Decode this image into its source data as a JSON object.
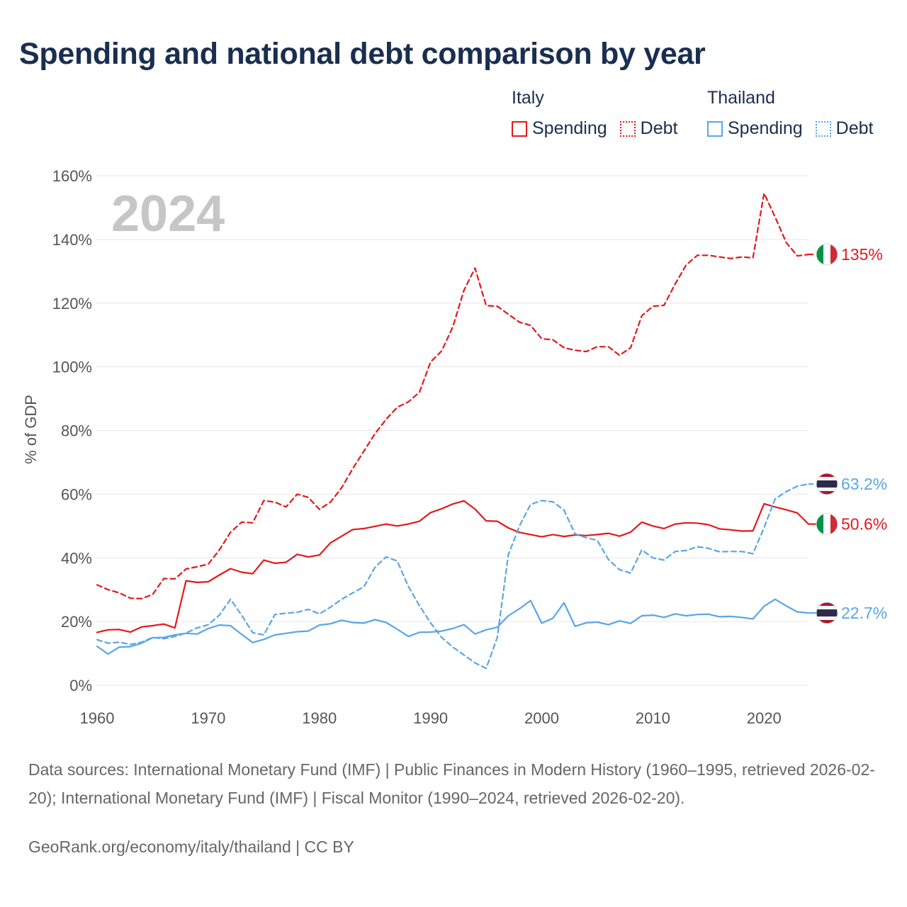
{
  "title": "Spending and national debt comparison by year",
  "legend": {
    "groups": [
      {
        "name": "Italy",
        "color": "#e3191c",
        "items": [
          {
            "label": "Spending",
            "style": "solid"
          },
          {
            "label": "Debt",
            "style": "dotted"
          }
        ]
      },
      {
        "name": "Thailand",
        "color": "#5aa6e6",
        "items": [
          {
            "label": "Spending",
            "style": "solid"
          },
          {
            "label": "Debt",
            "style": "dotted"
          }
        ]
      }
    ]
  },
  "chart_data": {
    "type": "line",
    "ylabel": "% of GDP",
    "xlabel": "",
    "ylim": [
      0,
      160
    ],
    "xlim": [
      1960,
      2025
    ],
    "x_ticks": [
      1960,
      1970,
      1980,
      1990,
      2000,
      2010,
      2020
    ],
    "y_ticks": [
      0,
      20,
      40,
      60,
      80,
      100,
      120,
      140,
      160
    ],
    "y_tick_labels": [
      "0%",
      "20%",
      "40%",
      "60%",
      "80%",
      "100%",
      "120%",
      "140%",
      "160%"
    ],
    "grid": true,
    "year_watermark": "2024",
    "series": [
      {
        "name": "Italy Debt",
        "country": "Italy",
        "metric": "Debt",
        "color": "#e3191c",
        "dashed": true,
        "end_label": "135%",
        "x": [
          1960,
          1961,
          1962,
          1963,
          1964,
          1965,
          1966,
          1967,
          1968,
          1969,
          1970,
          1971,
          1972,
          1973,
          1974,
          1975,
          1976,
          1977,
          1978,
          1979,
          1980,
          1981,
          1982,
          1983,
          1984,
          1985,
          1986,
          1987,
          1988,
          1989,
          1990,
          1991,
          1992,
          1993,
          1994,
          1995,
          1996,
          1997,
          1998,
          1999,
          2000,
          2001,
          2002,
          2003,
          2004,
          2005,
          2006,
          2007,
          2008,
          2009,
          2010,
          2011,
          2012,
          2013,
          2014,
          2015,
          2016,
          2017,
          2018,
          2019,
          2020,
          2021,
          2022,
          2023,
          2024
        ],
        "values": [
          31.5,
          30,
          29,
          27.3,
          27.2,
          28.5,
          33.5,
          33.4,
          36.5,
          37.2,
          38,
          42.5,
          48,
          51.2,
          51,
          58,
          57.5,
          56,
          60,
          59,
          55.2,
          57.5,
          62,
          68,
          73.5,
          79,
          83.5,
          87.3,
          89,
          92,
          101.5,
          105,
          112.5,
          124,
          131,
          119.2,
          119,
          116.5,
          114,
          113,
          108.8,
          108.5,
          106,
          105.2,
          104.8,
          106.3,
          106.3,
          103.6,
          106,
          116,
          119,
          119.3,
          126,
          132,
          135,
          135,
          134.5,
          134,
          134.5,
          134.2,
          154.5,
          147,
          139,
          134.8,
          135.3
        ]
      },
      {
        "name": "Italy Spending",
        "country": "Italy",
        "metric": "Spending",
        "color": "#e3191c",
        "dashed": false,
        "end_label": "50.6%",
        "x": [
          1960,
          1961,
          1962,
          1963,
          1964,
          1965,
          1966,
          1967,
          1968,
          1969,
          1970,
          1971,
          1972,
          1973,
          1974,
          1975,
          1976,
          1977,
          1978,
          1979,
          1980,
          1981,
          1982,
          1983,
          1984,
          1985,
          1986,
          1987,
          1988,
          1989,
          1990,
          1991,
          1992,
          1993,
          1994,
          1995,
          1996,
          1997,
          1998,
          1999,
          2000,
          2001,
          2002,
          2003,
          2004,
          2005,
          2006,
          2007,
          2008,
          2009,
          2010,
          2011,
          2012,
          2013,
          2014,
          2015,
          2016,
          2017,
          2018,
          2019,
          2020,
          2021,
          2022,
          2023,
          2024
        ],
        "values": [
          16.6,
          17.4,
          17.5,
          16.7,
          18.3,
          18.7,
          19.2,
          18,
          32.8,
          32.3,
          32.5,
          34.6,
          36.6,
          35.5,
          35,
          39.3,
          38.3,
          38.6,
          41.1,
          40.3,
          40.9,
          44.7,
          46.8,
          48.9,
          49.2,
          49.9,
          50.6,
          50,
          50.6,
          51.5,
          54.2,
          55.4,
          56.9,
          57.9,
          55.3,
          51.6,
          51.5,
          49.4,
          48,
          47.3,
          46.6,
          47.3,
          46.7,
          47.2,
          47,
          47.3,
          47.7,
          46.8,
          48.1,
          51.2,
          50,
          49.2,
          50.6,
          51,
          50.9,
          50.4,
          49.1,
          48.8,
          48.4,
          48.5,
          57,
          56,
          55.1,
          54.1,
          50.6
        ]
      },
      {
        "name": "Thailand Debt",
        "country": "Thailand",
        "metric": "Debt",
        "color": "#5aa6e6",
        "dashed": true,
        "end_label": "63.2%",
        "x": [
          1960,
          1961,
          1962,
          1963,
          1964,
          1965,
          1966,
          1967,
          1968,
          1969,
          1970,
          1971,
          1972,
          1973,
          1974,
          1975,
          1976,
          1977,
          1978,
          1979,
          1980,
          1981,
          1982,
          1983,
          1984,
          1985,
          1986,
          1987,
          1988,
          1989,
          1990,
          1991,
          1992,
          1993,
          1994,
          1995,
          1996,
          1997,
          1998,
          1999,
          2000,
          2001,
          2002,
          2003,
          2004,
          2005,
          2006,
          2007,
          2008,
          2009,
          2010,
          2011,
          2012,
          2013,
          2014,
          2015,
          2016,
          2017,
          2018,
          2019,
          2020,
          2021,
          2022,
          2023,
          2024
        ],
        "values": [
          14.3,
          13.2,
          13.5,
          12.8,
          13.5,
          15,
          14.6,
          15.3,
          16.4,
          18,
          19,
          22,
          27,
          22,
          16.5,
          15.8,
          22.2,
          22.6,
          22.9,
          23.8,
          22.4,
          24.5,
          27,
          29,
          30.9,
          37,
          40.3,
          39,
          31,
          25,
          19.6,
          15,
          12,
          9.5,
          7,
          5.3,
          15,
          41,
          50,
          56.8,
          58,
          57.6,
          55,
          47.5,
          46.3,
          45.5,
          39.5,
          36.3,
          35.2,
          42.5,
          40,
          39.3,
          42,
          42.3,
          43.5,
          43,
          41.9,
          42,
          42,
          41.3,
          49.5,
          58.5,
          60.8,
          62.5,
          63.2
        ]
      },
      {
        "name": "Thailand Spending",
        "country": "Thailand",
        "metric": "Spending",
        "color": "#5aa6e6",
        "dashed": false,
        "end_label": "22.7%",
        "x": [
          1960,
          1961,
          1962,
          1963,
          1964,
          1965,
          1966,
          1967,
          1968,
          1969,
          1970,
          1971,
          1972,
          1973,
          1974,
          1975,
          1976,
          1977,
          1978,
          1979,
          1980,
          1981,
          1982,
          1983,
          1984,
          1985,
          1986,
          1987,
          1988,
          1989,
          1990,
          1991,
          1992,
          1993,
          1994,
          1995,
          1996,
          1997,
          1998,
          1999,
          2000,
          2001,
          2002,
          2003,
          2004,
          2005,
          2006,
          2007,
          2008,
          2009,
          2010,
          2011,
          2012,
          2013,
          2014,
          2015,
          2016,
          2017,
          2018,
          2019,
          2020,
          2021,
          2022,
          2023,
          2024
        ],
        "values": [
          12.2,
          9.8,
          12,
          12.1,
          13.2,
          14.9,
          15,
          15.8,
          16.3,
          16.1,
          17.8,
          18.9,
          18.7,
          16,
          13.4,
          14.4,
          15.8,
          16.3,
          16.8,
          17,
          18.9,
          19.3,
          20.4,
          19.7,
          19.5,
          20.6,
          19.7,
          17.6,
          15.3,
          16.6,
          16.7,
          17,
          17.8,
          19,
          16.1,
          17.4,
          18.2,
          21.8,
          24,
          26.6,
          19.5,
          21,
          25.9,
          18.5,
          19.6,
          19.8,
          19,
          20.2,
          19.4,
          21.8,
          22,
          21.3,
          22.4,
          21.8,
          22.2,
          22.3,
          21.5,
          21.6,
          21.3,
          20.8,
          24.8,
          27,
          24.9,
          23,
          22.7
        ]
      }
    ]
  },
  "footer": {
    "sources": "Data sources: International Monetary Fund (IMF) | Public Finances in Modern History (1960–1995, retrieved 2026-02-20); International Monetary Fund (IMF) | Fiscal Monitor (1990–2024, retrieved 2026-02-20).",
    "link": "GeoRank.org/economy/italy/thailand | CC BY"
  }
}
